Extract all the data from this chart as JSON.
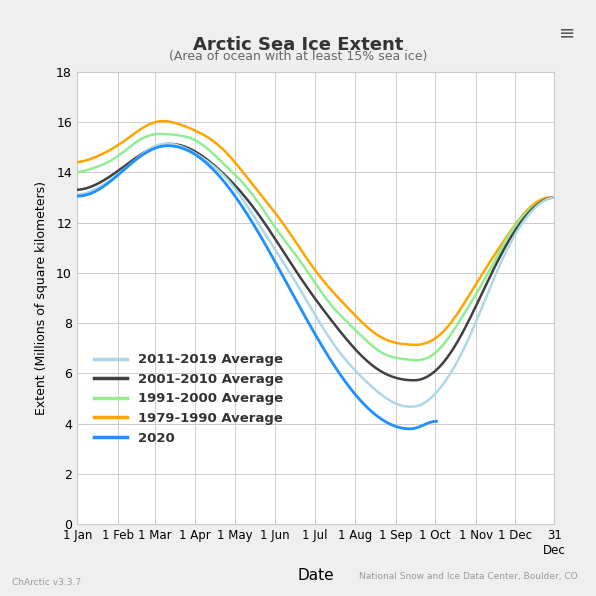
{
  "title": "Arctic Sea Ice Extent",
  "subtitle": "(Area of ocean with at least 15% sea ice)",
  "xlabel": "Date",
  "ylabel": "Extent (Millions of square kilometers)",
  "watermark": "National Snow and Ice Data Center, Boulder, CO",
  "version": "ChArctic v3.3.7",
  "ylim": [
    0,
    18
  ],
  "yticks": [
    0,
    2,
    4,
    6,
    8,
    10,
    12,
    14,
    16,
    18
  ],
  "bg_color": "#f0f0f0",
  "plot_bg_color": "#ffffff",
  "colors": {
    "2011_2019": "#add8e6",
    "2001_2010": "#404040",
    "1991_2000": "#90ee90",
    "1979_1990": "#ffa500",
    "2020": "#1e90ff"
  },
  "legend_labels": [
    "2011-2019 Average",
    "2001-2010 Average",
    "1991-2000 Average",
    "1979-1990 Average",
    "2020"
  ],
  "xtick_labels": [
    "1 Jan",
    "1 Feb",
    "1 Mar",
    "1 Apr",
    "1 May",
    "1 Jun",
    "1 Jul",
    "1 Aug",
    "1 Sep",
    "1 Oct",
    "1 Nov",
    "1 Dec",
    "31\nDec"
  ],
  "xtick_positions": [
    1,
    32,
    60,
    91,
    121,
    152,
    182,
    213,
    244,
    274,
    305,
    335,
    365
  ]
}
